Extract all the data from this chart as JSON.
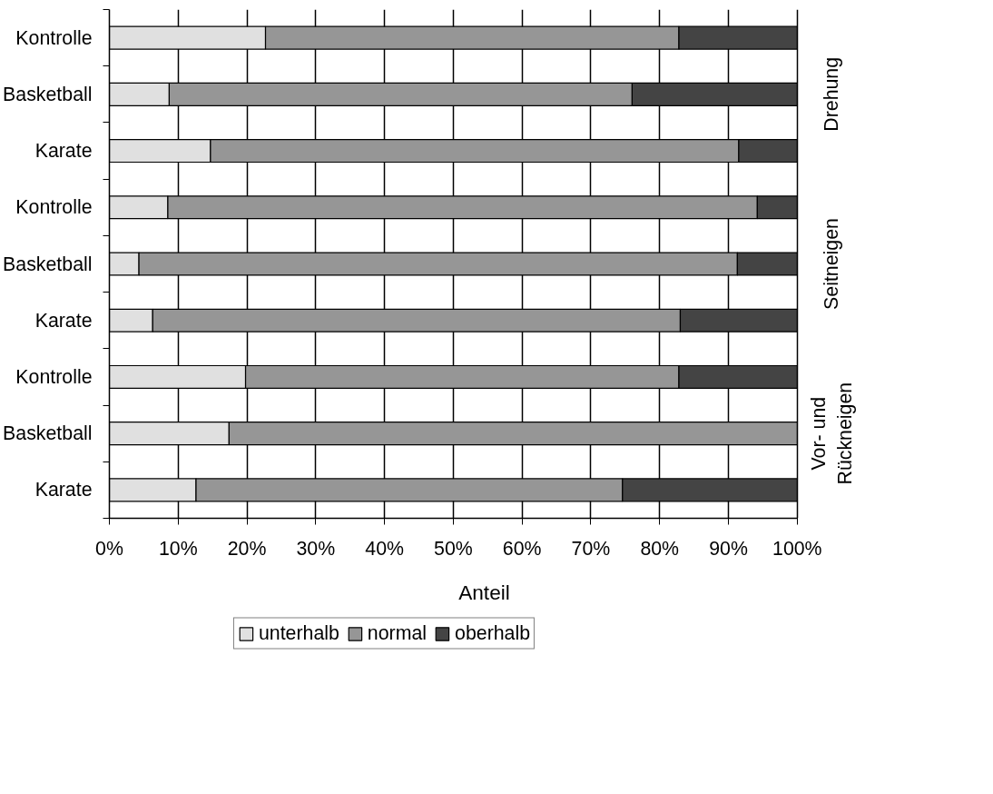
{
  "chart_data": {
    "type": "bar",
    "orientation": "horizontal",
    "stacked": true,
    "categories": [
      "Kontrolle",
      "Basketball",
      "Karate",
      "Kontrolle",
      "Basketball",
      "Karate",
      "Kontrolle",
      "Basketball",
      "Karate"
    ],
    "series": [
      {
        "name": "unterhalb",
        "color": "#e0e0e0",
        "values": [
          22.7,
          8.7,
          14.7,
          8.5,
          4.3,
          6.3,
          19.8,
          17.4,
          12.6
        ]
      },
      {
        "name": "normal",
        "color": "#969696",
        "values": [
          60.1,
          67.3,
          76.8,
          85.7,
          87.0,
          76.7,
          63.0,
          82.6,
          62.0
        ]
      },
      {
        "name": "oberhalb",
        "color": "#444444",
        "values": [
          17.2,
          24.0,
          8.5,
          5.8,
          8.7,
          17.0,
          17.2,
          0,
          25.4
        ]
      }
    ],
    "xlabel": "Anteil",
    "xlim": [
      0,
      100
    ],
    "xticks": [
      {
        "value": 0,
        "label": "0%"
      },
      {
        "value": 10,
        "label": "10%"
      },
      {
        "value": 20,
        "label": "20%"
      },
      {
        "value": 30,
        "label": "30%"
      },
      {
        "value": 40,
        "label": "40%"
      },
      {
        "value": 50,
        "label": "50%"
      },
      {
        "value": 60,
        "label": "60%"
      },
      {
        "value": 70,
        "label": "70%"
      },
      {
        "value": 80,
        "label": "80%"
      },
      {
        "value": 90,
        "label": "90%"
      },
      {
        "value": 100,
        "label": "100%"
      }
    ],
    "annotations": [
      "Drehung",
      "Seitneigen",
      "Vor- und\nRückneigen"
    ],
    "grid": "x",
    "legend": "bottom"
  }
}
